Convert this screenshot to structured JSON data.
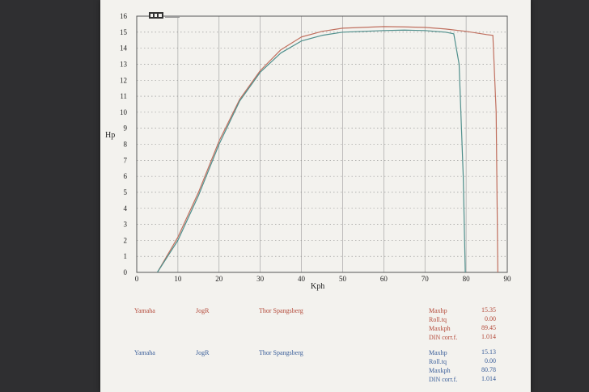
{
  "chart_data": {
    "type": "line",
    "ylabel": "Hp",
    "xlabel": "Kph",
    "xlim": [
      0,
      90
    ],
    "ylim": [
      0,
      16
    ],
    "x_ticks": [
      "0",
      "10",
      "20",
      "30",
      "40",
      "50",
      "60",
      "70",
      "80",
      "90"
    ],
    "y_ticks": [
      "0",
      "1",
      "2",
      "3",
      "4",
      "5",
      "6",
      "7",
      "8",
      "9",
      "10",
      "11",
      "12",
      "13",
      "14",
      "15",
      "16"
    ],
    "grid": true,
    "series": [
      {
        "color": "#c0705f",
        "points": [
          [
            5,
            0
          ],
          [
            10,
            2.2
          ],
          [
            15,
            5.0
          ],
          [
            20,
            8.2
          ],
          [
            25,
            10.8
          ],
          [
            30,
            12.6
          ],
          [
            35,
            13.9
          ],
          [
            40,
            14.7
          ],
          [
            45,
            15.05
          ],
          [
            50,
            15.25
          ],
          [
            55,
            15.3
          ],
          [
            60,
            15.35
          ],
          [
            65,
            15.33
          ],
          [
            70,
            15.3
          ],
          [
            75,
            15.2
          ],
          [
            80,
            15.05
          ],
          [
            85,
            14.85
          ],
          [
            86.5,
            14.8
          ],
          [
            87.3,
            10
          ],
          [
            87.7,
            0
          ]
        ]
      },
      {
        "color": "#4f8f8c",
        "points": [
          [
            5,
            0
          ],
          [
            10,
            2.0
          ],
          [
            15,
            4.8
          ],
          [
            20,
            8.0
          ],
          [
            25,
            10.7
          ],
          [
            30,
            12.5
          ],
          [
            35,
            13.7
          ],
          [
            40,
            14.45
          ],
          [
            45,
            14.8
          ],
          [
            50,
            15.0
          ],
          [
            55,
            15.05
          ],
          [
            60,
            15.1
          ],
          [
            65,
            15.13
          ],
          [
            70,
            15.1
          ],
          [
            75,
            15.0
          ],
          [
            77,
            14.9
          ],
          [
            78.3,
            13
          ],
          [
            79.3,
            6
          ],
          [
            79.8,
            0
          ]
        ]
      }
    ]
  },
  "runs": [
    {
      "make": "Yamaha",
      "model": "JogR",
      "rider": "Thor Spangsberg",
      "color": "#b44a3a",
      "stats": [
        {
          "label": "Maxhp",
          "value": "15.35"
        },
        {
          "label": "Roll.tq",
          "value": "0.00"
        },
        {
          "label": "Maxkph",
          "value": "89.45"
        },
        {
          "label": "DIN corr.f.",
          "value": "1.014"
        }
      ]
    },
    {
      "make": "Yamaha",
      "model": "JogR",
      "rider": "Thor Spangsberg",
      "color": "#3b5f9a",
      "stats": [
        {
          "label": "Maxhp",
          "value": "15.13"
        },
        {
          "label": "Roll.tq",
          "value": "0.00"
        },
        {
          "label": "Maxkph",
          "value": "80.78"
        },
        {
          "label": "DIN corr.f.",
          "value": "1.014"
        }
      ]
    }
  ]
}
